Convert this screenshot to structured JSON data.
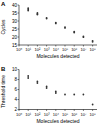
{
  "chart_data": [
    {
      "type": "scatter",
      "title": "A",
      "x_label": "Molecules detected",
      "y_label": "Cycles",
      "log": "x",
      "color": "#333333",
      "marker": "circle",
      "x": [
        10,
        10,
        10,
        100,
        100,
        100,
        1000,
        1000,
        10000,
        10000,
        100000,
        100000,
        1000000,
        1000000,
        10000000,
        10000000,
        100000000,
        100000000
      ],
      "values": [
        38,
        37.2,
        36.5,
        35,
        34.4,
        34,
        32,
        31.5,
        29,
        28.5,
        26.2,
        25.7,
        23.3,
        22.8,
        20.4,
        19.9,
        17.6,
        17
      ],
      "xlim": [
        1,
        300000000
      ],
      "xticks": [
        {
          "value": 1,
          "label": "10⁰"
        },
        {
          "value": 10,
          "label": "10¹"
        },
        {
          "value": 100,
          "label": "10²"
        },
        {
          "value": 1000,
          "label": "10³"
        },
        {
          "value": 10000,
          "label": "10⁴"
        },
        {
          "value": 100000,
          "label": "10⁵"
        },
        {
          "value": 1000000,
          "label": "10⁶"
        },
        {
          "value": 10000000,
          "label": "10⁷"
        },
        {
          "value": 100000000,
          "label": "10⁸"
        }
      ],
      "ylim": [
        15,
        40
      ],
      "yticks": [
        15,
        20,
        25,
        30,
        35,
        40
      ]
    },
    {
      "type": "scatter",
      "title": "B",
      "x_label": "Molecules detected",
      "y_label": "Threshold time",
      "log": "x",
      "color": "#333333",
      "marker": "circle",
      "x": [
        10,
        10,
        100,
        100,
        1000,
        1000,
        10000,
        10000,
        100000,
        1000000,
        10000000,
        100000000
      ],
      "values": [
        8.7,
        8.3,
        7.6,
        7.3,
        6.6,
        6.3,
        5.6,
        5.3,
        5,
        5,
        5,
        3
      ],
      "xlim": [
        1,
        300000000
      ],
      "xticks": [
        {
          "value": 1,
          "label": "10⁰"
        },
        {
          "value": 10,
          "label": "10¹"
        },
        {
          "value": 100,
          "label": "10²"
        },
        {
          "value": 1000,
          "label": "10³"
        },
        {
          "value": 10000,
          "label": "10⁴"
        },
        {
          "value": 100000,
          "label": "10⁵"
        },
        {
          "value": 1000000,
          "label": "10⁶"
        },
        {
          "value": 10000000,
          "label": "10⁷"
        },
        {
          "value": 100000000,
          "label": "10⁸"
        }
      ],
      "ylim": [
        2,
        10
      ],
      "yticks": [
        2,
        4,
        6,
        8,
        10
      ]
    }
  ]
}
